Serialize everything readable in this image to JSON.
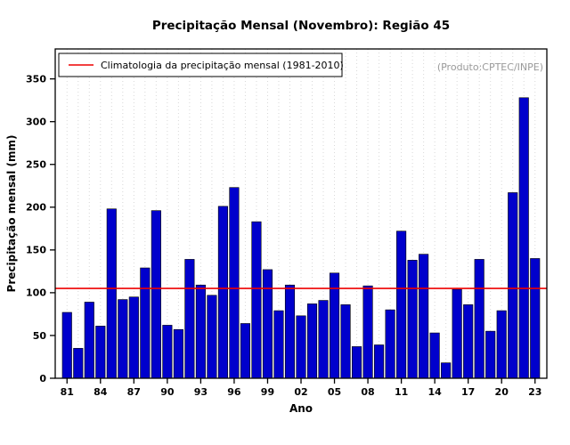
{
  "chart_data": {
    "type": "bar",
    "title": "Precipitação Mensal (Novembro): Região 45",
    "xlabel": "Ano",
    "ylabel": "Precipitação mensal (mm)",
    "annotation": "(Produto:CPTEC/INPE)",
    "legend": {
      "label": "Climatologia da precipitação mensal (1981-2010)",
      "line_color": "#ee0000",
      "position": "top-left"
    },
    "climatology_value": 105,
    "bar_color": "#0000cc",
    "bar_border_color": "#000000",
    "grid": "vertical-dotted",
    "ylim": [
      0,
      385
    ],
    "yticks": [
      0,
      50,
      100,
      150,
      200,
      250,
      300,
      350
    ],
    "xtick_labels": [
      "81",
      "84",
      "87",
      "90",
      "93",
      "96",
      "99",
      "02",
      "05",
      "08",
      "11",
      "14",
      "17",
      "20",
      "23"
    ],
    "xtick_step": 3,
    "years": [
      1981,
      1982,
      1983,
      1984,
      1985,
      1986,
      1987,
      1988,
      1989,
      1990,
      1991,
      1992,
      1993,
      1994,
      1995,
      1996,
      1997,
      1998,
      1999,
      2000,
      2001,
      2002,
      2003,
      2004,
      2005,
      2006,
      2007,
      2008,
      2009,
      2010,
      2011,
      2012,
      2013,
      2014,
      2015,
      2016,
      2017,
      2018,
      2019,
      2020,
      2021,
      2022,
      2023
    ],
    "values": [
      77,
      35,
      89,
      61,
      198,
      92,
      95,
      129,
      196,
      62,
      57,
      139,
      109,
      97,
      201,
      223,
      64,
      183,
      127,
      79,
      109,
      73,
      87,
      91,
      123,
      86,
      37,
      108,
      39,
      80,
      172,
      138,
      145,
      53,
      18,
      104,
      86,
      139,
      55,
      79,
      217,
      328,
      140
    ]
  }
}
